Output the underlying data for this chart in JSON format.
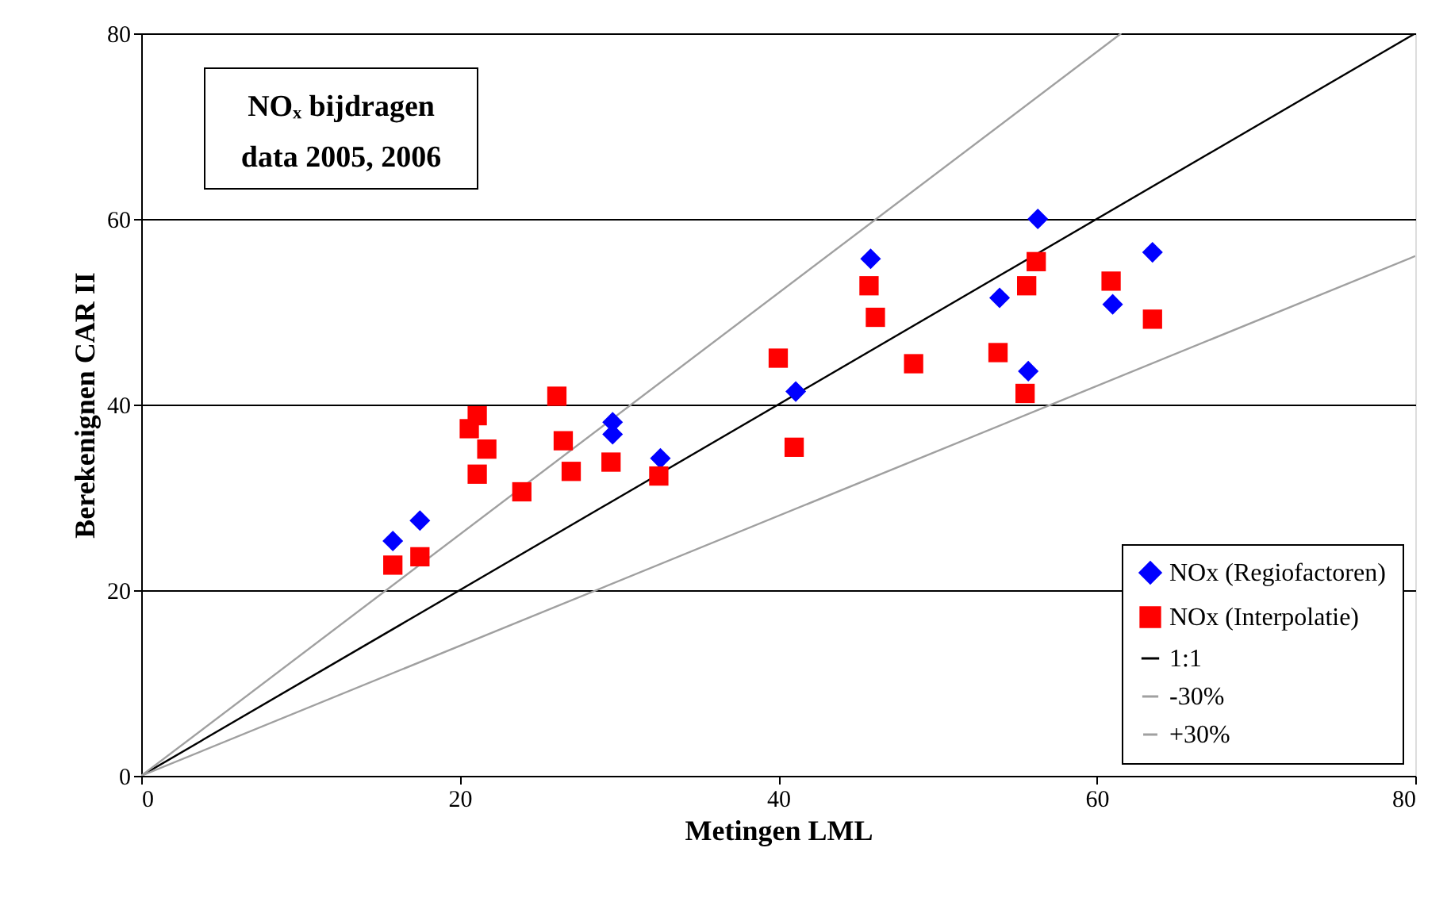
{
  "chart_data": {
    "type": "scatter",
    "xlabel": "Metingen LML",
    "ylabel": "Berekenignen CAR II",
    "annotations": [
      "NOₓ bijdragen",
      "data 2005, 2006"
    ],
    "xlim": [
      0,
      80
    ],
    "ylim": [
      0,
      80
    ],
    "xticks": [
      0,
      20,
      40,
      60,
      80
    ],
    "yticks": [
      0,
      20,
      40,
      60,
      80
    ],
    "grid": "y",
    "legend": "bottom right",
    "series": [
      {
        "name": "NOx (Regiofactoren)",
        "color": "#0000ff",
        "marker": "diamond",
        "x": [
          15.8,
          17.5,
          29.6,
          29.6,
          32.6,
          41.1,
          45.8,
          53.9,
          55.7,
          56.3,
          61.0,
          63.5
        ],
        "values": [
          25.3,
          27.5,
          38.1,
          36.8,
          34.2,
          41.4,
          55.7,
          51.5,
          43.6,
          60.0,
          50.8,
          56.4
        ]
      },
      {
        "name": "NOx (Interpolatie)",
        "color": "#ff0000",
        "marker": "square",
        "x": [
          15.8,
          17.5,
          20.6,
          21.1,
          21.1,
          21.7,
          23.9,
          26.1,
          26.5,
          27.0,
          29.5,
          32.5,
          40.0,
          41.0,
          45.7,
          46.1,
          48.5,
          53.8,
          55.5,
          55.6,
          56.2,
          60.9,
          63.5
        ],
        "values": [
          22.7,
          23.6,
          37.4,
          38.8,
          32.5,
          35.2,
          30.6,
          40.9,
          36.1,
          32.8,
          33.8,
          32.3,
          45.0,
          35.4,
          52.8,
          49.4,
          44.4,
          45.6,
          41.2,
          52.8,
          55.4,
          53.3,
          49.2
        ]
      },
      {
        "name": "1:1",
        "type": "line",
        "color": "#000000",
        "marker": "none",
        "x": [
          0,
          80
        ],
        "values": [
          0,
          80
        ]
      },
      {
        "name": "-30%",
        "type": "line",
        "color": "#a0a0a0",
        "marker": "none",
        "x": [
          0,
          80
        ],
        "values": [
          0,
          56
        ]
      },
      {
        "name": "+30%",
        "type": "line",
        "color": "#a0a0a0",
        "marker": "none",
        "x": [
          0,
          61.54
        ],
        "values": [
          0,
          80
        ]
      }
    ]
  }
}
